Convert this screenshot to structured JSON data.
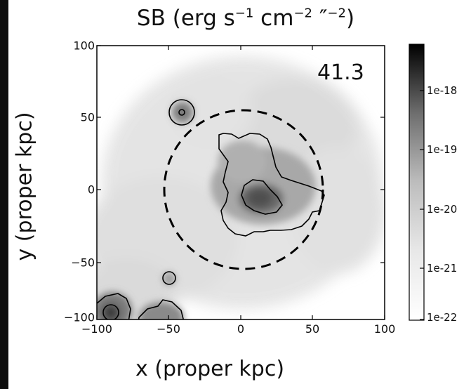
{
  "chart_data": {
    "type": "heatmap",
    "title": {
      "prefix": "SB (erg s",
      "exp1": "−1",
      "mid": " cm",
      "exp2": "−2",
      "end": " ″",
      "exp3": "−2",
      "suffix": ")"
    },
    "xlabel": "x (proper kpc)",
    "ylabel": "y (proper kpc)",
    "xlim": [
      -100,
      100
    ],
    "ylim": [
      -100,
      100
    ],
    "x_ticks": [
      "−100",
      "−50",
      "0",
      "50",
      "100"
    ],
    "y_ticks": [
      "100",
      "50",
      "0",
      "−50",
      "−100"
    ],
    "colorbar": {
      "scale": "log",
      "colormap": "grayscale (white = low, black = high)",
      "ticks": [
        "1e-18",
        "1e-19",
        "1e-20",
        "1e-21",
        "1e-22"
      ]
    },
    "annotation": "41.3",
    "aperture_circle": {
      "center": [
        0,
        0
      ],
      "radius_kpc": 55,
      "style": "dashed"
    },
    "contour_features": [
      {
        "name": "central halo",
        "center": [
          8,
          -5
        ]
      },
      {
        "name": "satellite",
        "center": [
          -43,
          53
        ]
      },
      {
        "name": "small blob",
        "center": [
          -52,
          -61
        ]
      },
      {
        "name": "corner blob",
        "center": [
          -92,
          -85
        ]
      }
    ]
  }
}
